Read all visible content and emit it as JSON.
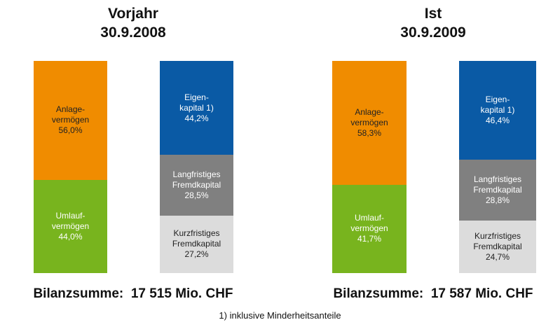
{
  "chart_data": [
    {
      "type": "bar",
      "stacked": true,
      "title": "Vorjahr",
      "subtitle": "30.9.2008",
      "categories": [
        null,
        null
      ],
      "ylim": [
        0,
        100
      ],
      "series": [
        {
          "name": "Umlauf-\nvermögen",
          "color": "#78b41e",
          "values": [
            44.0,
            null
          ],
          "value_labels": [
            "44,0%",
            null
          ]
        },
        {
          "name": "Anlage-\nvermögen",
          "color": "#f08c00",
          "values": [
            56.0,
            null
          ],
          "value_labels": [
            "56,0%",
            null
          ]
        },
        {
          "name": "Kurzfristiges\nFremdkapital",
          "color": "#dcdcdc",
          "values": [
            null,
            27.2
          ],
          "value_labels": [
            null,
            "27,2%"
          ]
        },
        {
          "name": "Langfristiges\nFremdkapital",
          "color": "#808080",
          "values": [
            null,
            28.5
          ],
          "value_labels": [
            null,
            "28,5%"
          ]
        },
        {
          "name": "Eigen-\nkapital 1)",
          "color": "#0a5aa5",
          "values": [
            null,
            44.2
          ],
          "value_labels": [
            null,
            "44,2%"
          ]
        }
      ],
      "annotation": "Bilanzsumme:  17 515 Mio. CHF"
    },
    {
      "type": "bar",
      "stacked": true,
      "title": "Ist",
      "subtitle": "30.9.2009",
      "categories": [
        null,
        null
      ],
      "ylim": [
        0,
        100
      ],
      "series": [
        {
          "name": "Umlauf-\nvermögen",
          "color": "#78b41e",
          "values": [
            41.7,
            null
          ],
          "value_labels": [
            "41,7%",
            null
          ]
        },
        {
          "name": "Anlage-\nvermögen",
          "color": "#f08c00",
          "values": [
            58.3,
            null
          ],
          "value_labels": [
            "58,3%",
            null
          ]
        },
        {
          "name": "Kurzfristiges\nFremdkapital",
          "color": "#dcdcdc",
          "values": [
            null,
            24.7
          ],
          "value_labels": [
            null,
            "24,7%"
          ]
        },
        {
          "name": "Langfristiges\nFremdkapital",
          "color": "#808080",
          "values": [
            null,
            28.8
          ],
          "value_labels": [
            null,
            "28,8%"
          ]
        },
        {
          "name": "Eigen-\nkapital 1)",
          "color": "#0a5aa5",
          "values": [
            null,
            46.4
          ],
          "value_labels": [
            null,
            "46,4%"
          ]
        }
      ],
      "annotation": "Bilanzsumme:  17 587 Mio. CHF"
    }
  ],
  "footnote": "1) inklusive Minderheitsanteile"
}
